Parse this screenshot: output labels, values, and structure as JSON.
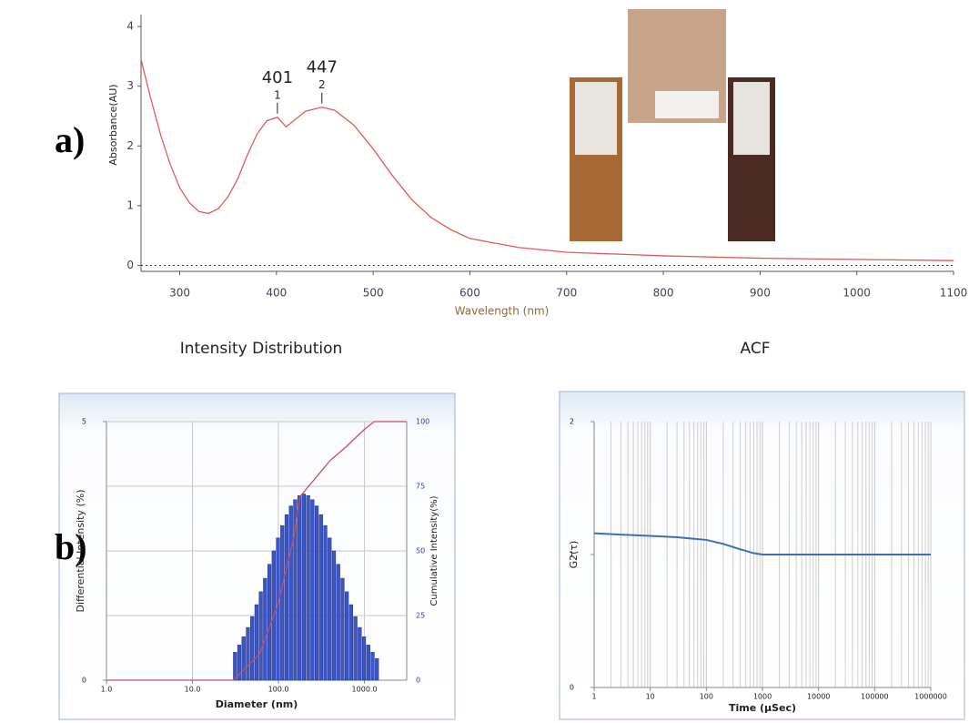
{
  "panels": [
    "a)",
    "b)"
  ],
  "chart_data": [
    {
      "type": "line",
      "x_label": "Wavelength (nm)",
      "y_label": "Absorbance(AU)",
      "xlim": [
        260,
        1100
      ],
      "ylim": [
        -0.1,
        4.2
      ],
      "xticks": [
        300,
        400,
        500,
        600,
        700,
        800,
        900,
        1000,
        1100
      ],
      "yticks": [
        0,
        1,
        2,
        3,
        4
      ],
      "zero_line": true,
      "x": [
        260,
        270,
        280,
        290,
        300,
        310,
        320,
        330,
        340,
        350,
        360,
        370,
        380,
        390,
        401,
        410,
        420,
        430,
        447,
        460,
        480,
        500,
        520,
        540,
        560,
        580,
        600,
        650,
        700,
        800,
        900,
        1000,
        1100
      ],
      "series": [
        {
          "color": "#e05a5a",
          "values": [
            3.45,
            2.8,
            2.2,
            1.7,
            1.3,
            1.05,
            0.9,
            0.87,
            0.95,
            1.15,
            1.45,
            1.85,
            2.2,
            2.42,
            2.48,
            2.32,
            2.45,
            2.58,
            2.65,
            2.6,
            2.35,
            1.95,
            1.5,
            1.1,
            0.8,
            0.6,
            0.45,
            0.3,
            0.22,
            0.16,
            0.12,
            0.1,
            0.08
          ]
        }
      ],
      "annotations": [
        {
          "text": "401",
          "marker": "1",
          "x": 401,
          "y": 2.48
        },
        {
          "text": "447",
          "marker": "2",
          "x": 447,
          "y": 2.65
        }
      ]
    },
    {
      "type": "histogram",
      "title": "Intensity Distribution",
      "x_label": "Diameter (nm)",
      "y_label": "Differential Intensity (%)",
      "y2_label": "Cumulative Intensity(%)",
      "log_x": true,
      "xlim": [
        1,
        3100
      ],
      "ylim": [
        0,
        5
      ],
      "y2lim": [
        0,
        100
      ],
      "xticks": [
        {
          "value": 1,
          "label": "1.0"
        },
        {
          "value": 10,
          "label": "10.0"
        },
        {
          "value": 100,
          "label": "100.0"
        },
        {
          "value": 1000,
          "label": "1000.0"
        }
      ],
      "yticks": [
        0,
        5
      ],
      "y2ticks": [
        0,
        25,
        50,
        75,
        100
      ],
      "grid": true,
      "color": "#3a56c8",
      "bins": [
        29.9,
        33.5,
        37.6,
        42.2,
        47.3,
        53.1,
        59.6,
        66.8,
        75.0,
        84.1,
        94.4,
        105.9,
        118.9,
        133.4,
        149.6,
        167.9,
        188.4,
        211.3,
        237.1,
        266.1,
        298.5,
        335.0,
        375.8,
        421.7,
        473.2,
        530.9,
        595.7,
        668.3,
        749.9,
        841.4,
        944.1,
        1059.3,
        1188.5,
        1333.5,
        1496.2
      ],
      "values": [
        0.54,
        0.68,
        0.84,
        1.02,
        1.23,
        1.46,
        1.71,
        1.97,
        2.24,
        2.5,
        2.75,
        2.99,
        3.2,
        3.37,
        3.49,
        3.57,
        3.6,
        3.57,
        3.49,
        3.37,
        3.2,
        2.99,
        2.75,
        2.5,
        2.24,
        1.97,
        1.71,
        1.46,
        1.23,
        1.02,
        0.84,
        0.68,
        0.54,
        0.42
      ],
      "series": [
        {
          "axis": "y2",
          "color": "#c0506a",
          "x": [
            1,
            29.9,
            60,
            100,
            150,
            178,
            300,
            400,
            600,
            1000,
            1300,
            3100
          ],
          "values": [
            0,
            0,
            10,
            30,
            55,
            71,
            80,
            85,
            90,
            97,
            100,
            100
          ]
        }
      ]
    },
    {
      "type": "line",
      "title": "ACF",
      "x_label": "Time (µSec)",
      "y_label": "G2(τ)",
      "log_x": true,
      "xlim": [
        1,
        1000000
      ],
      "ylim": [
        0,
        2
      ],
      "xticks": [
        1,
        10,
        100,
        1000,
        10000,
        100000,
        1000000
      ],
      "yticks": [
        0,
        1,
        2
      ],
      "grid": "x",
      "minor_grid": true,
      "x": [
        1,
        3,
        10,
        30,
        100,
        200,
        400,
        700,
        1000,
        3000,
        1000000
      ],
      "series": [
        {
          "color": "#3c6fb4",
          "values": [
            1.16,
            1.15,
            1.14,
            1.13,
            1.11,
            1.08,
            1.04,
            1.01,
            1.0,
            1.0,
            1.0
          ]
        }
      ]
    }
  ]
}
